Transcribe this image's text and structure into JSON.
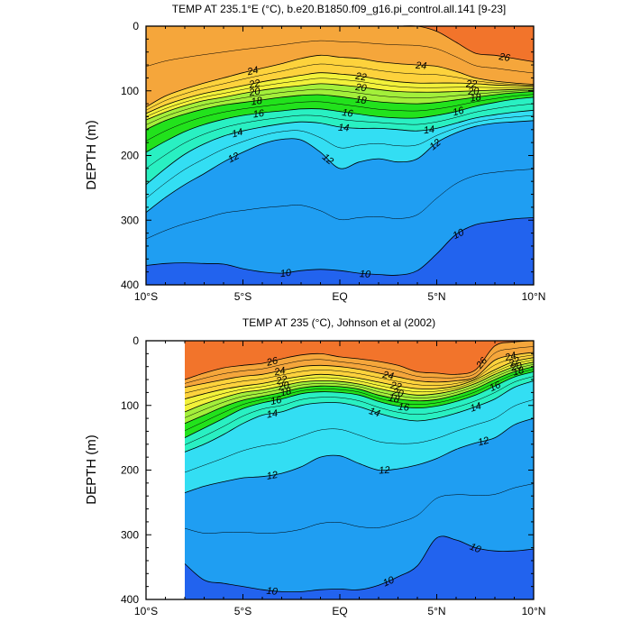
{
  "chart_data": [
    {
      "type": "contour",
      "title": "TEMP AT 235.1°E (°C), b.e20.B1850.f09_g16.pi_control.all.141 [9-23]",
      "xlabel": "",
      "ylabel": "DEPTH (m)",
      "xlim": [
        -10,
        10
      ],
      "ylim": [
        400,
        0
      ],
      "x_ticks": [
        -10,
        -5,
        0,
        5,
        10
      ],
      "x_tick_labels": [
        "10°S",
        "5°S",
        "EQ",
        "5°N",
        "10°N"
      ],
      "y_ticks": [
        0,
        100,
        200,
        300,
        400
      ],
      "y_tick_labels": [
        "0",
        "100",
        "200",
        "300",
        "400"
      ],
      "data_x_range": [
        -10,
        10
      ],
      "x": [
        -10,
        -9,
        -8,
        -7,
        -6,
        -5,
        -4,
        -3,
        -2,
        -1,
        0,
        1,
        2,
        3,
        4,
        5,
        6,
        7,
        8,
        9,
        10
      ],
      "isotherm_depths": [
        {
          "level": 26,
          "depths": [
            0,
            0,
            0,
            0,
            0,
            0,
            0,
            0,
            0,
            0,
            0,
            0,
            0,
            0,
            0,
            8,
            25,
            42,
            45,
            50,
            55
          ]
        },
        {
          "level": 24,
          "depths": [
            125,
            108,
            97,
            88,
            80,
            72,
            65,
            58,
            50,
            45,
            48,
            50,
            55,
            58,
            60,
            62,
            70,
            80,
            85,
            88,
            90
          ]
        },
        {
          "level": 22,
          "depths": [
            135,
            122,
            112,
            104,
            98,
            92,
            86,
            81,
            76,
            72,
            74,
            77,
            82,
            86,
            88,
            88,
            88,
            89,
            91,
            92,
            93
          ]
        },
        {
          "level": 20,
          "depths": [
            145,
            133,
            123,
            115,
            110,
            104,
            99,
            95,
            92,
            89,
            91,
            94,
            98,
            101,
            102,
            102,
            101,
            100,
            99,
            98,
            97
          ]
        },
        {
          "level": 18,
          "depths": [
            160,
            146,
            136,
            128,
            122,
            118,
            114,
            110,
            107,
            106,
            109,
            113,
            117,
            119,
            120,
            118,
            114,
            110,
            106,
            103,
            101
          ]
        },
        {
          "level": 16,
          "depths": [
            195,
            178,
            163,
            152,
            144,
            138,
            134,
            131,
            128,
            128,
            132,
            136,
            140,
            142,
            142,
            138,
            132,
            124,
            118,
            113,
            110
          ]
        },
        {
          "level": 14,
          "depths": [
            245,
            220,
            198,
            182,
            170,
            162,
            156,
            151,
            148,
            150,
            156,
            158,
            158,
            160,
            162,
            158,
            150,
            142,
            137,
            133,
            130
          ]
        },
        {
          "level": 12,
          "depths": [
            288,
            265,
            245,
            228,
            210,
            195,
            182,
            175,
            176,
            195,
            220,
            210,
            205,
            210,
            205,
            180,
            165,
            155,
            150,
            148,
            146
          ]
        },
        {
          "level": 10,
          "depths": [
            370,
            367,
            366,
            367,
            368,
            375,
            380,
            382,
            378,
            376,
            378,
            382,
            384,
            385,
            378,
            352,
            322,
            307,
            302,
            298,
            296
          ]
        }
      ],
      "contour_labels": [
        "24",
        "22",
        "20",
        "18",
        "16",
        "14",
        "12",
        "10",
        "26"
      ]
    },
    {
      "type": "contour",
      "title": "TEMP AT 235 (°C), Johnson et al (2002)",
      "xlabel": "",
      "ylabel": "DEPTH (m)",
      "xlim": [
        -10,
        10
      ],
      "ylim": [
        400,
        0
      ],
      "x_ticks": [
        -10,
        -5,
        0,
        5,
        10
      ],
      "x_tick_labels": [
        "10°S",
        "5°S",
        "EQ",
        "5°N",
        "10°N"
      ],
      "y_ticks": [
        0,
        100,
        200,
        300,
        400
      ],
      "y_tick_labels": [
        "0",
        "100",
        "200",
        "300",
        "400"
      ],
      "data_x_range": [
        -8,
        10
      ],
      "x": [
        -8,
        -7,
        -6,
        -5,
        -4,
        -3,
        -2,
        -1,
        0,
        1,
        2,
        3,
        4,
        5,
        6,
        7,
        8,
        9,
        10
      ],
      "isotherm_depths": [
        {
          "level": 26,
          "depths": [
            60,
            50,
            42,
            38,
            35,
            28,
            22,
            20,
            25,
            28,
            32,
            38,
            48,
            50,
            52,
            45,
            8,
            2,
            0
          ]
        },
        {
          "level": 24,
          "depths": [
            72,
            66,
            60,
            55,
            52,
            46,
            40,
            38,
            40,
            44,
            50,
            56,
            62,
            64,
            62,
            56,
            30,
            22,
            18
          ]
        },
        {
          "level": 22,
          "depths": [
            90,
            82,
            75,
            70,
            66,
            60,
            55,
            52,
            54,
            58,
            64,
            70,
            74,
            74,
            70,
            60,
            45,
            32,
            26
          ]
        },
        {
          "level": 20,
          "depths": [
            110,
            98,
            88,
            80,
            76,
            70,
            64,
            62,
            63,
            67,
            74,
            80,
            84,
            82,
            76,
            66,
            52,
            40,
            33
          ]
        },
        {
          "level": 18,
          "depths": [
            128,
            115,
            102,
            92,
            86,
            80,
            73,
            70,
            71,
            75,
            84,
            90,
            93,
            91,
            84,
            74,
            60,
            48,
            40
          ]
        },
        {
          "level": 16,
          "depths": [
            150,
            135,
            120,
            105,
            96,
            90,
            82,
            79,
            80,
            84,
            94,
            101,
            104,
            101,
            94,
            84,
            70,
            56,
            48
          ]
        },
        {
          "level": 14,
          "depths": [
            172,
            160,
            145,
            128,
            115,
            110,
            100,
            96,
            96,
            102,
            112,
            120,
            124,
            120,
            112,
            102,
            90,
            72,
            62
          ]
        },
        {
          "level": 12,
          "depths": [
            235,
            225,
            218,
            212,
            210,
            205,
            195,
            180,
            178,
            190,
            200,
            198,
            192,
            182,
            168,
            158,
            150,
            130,
            120
          ]
        },
        {
          "level": 10,
          "depths": [
            345,
            370,
            375,
            380,
            385,
            388,
            388,
            385,
            384,
            385,
            378,
            365,
            348,
            305,
            308,
            320,
            325,
            325,
            322
          ]
        }
      ],
      "contour_labels": [
        "26",
        "24",
        "22",
        "20",
        "18",
        "16",
        "14",
        "12",
        "10"
      ]
    }
  ]
}
